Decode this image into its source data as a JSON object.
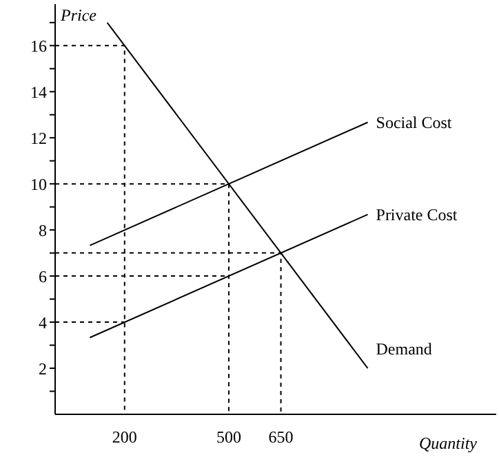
{
  "chart_data": {
    "type": "line",
    "xlabel": "Quantity",
    "ylabel": "Price",
    "xlim": [
      0,
      1270
    ],
    "ylim": [
      0,
      17.8
    ],
    "xticks": [
      200,
      500,
      650
    ],
    "yticks": [
      {
        "value": 1,
        "label": null
      },
      2,
      {
        "value": 3,
        "label": null
      },
      4,
      {
        "value": 5,
        "label": null
      },
      6,
      {
        "value": 7,
        "label": null
      },
      8,
      {
        "value": 9,
        "label": null
      },
      10,
      {
        "value": 11,
        "label": null
      },
      12,
      {
        "value": 13,
        "label": null
      },
      14,
      {
        "value": 15,
        "label": null
      },
      16,
      {
        "value": 17,
        "label": null
      }
    ],
    "grid": false,
    "legend": false,
    "marker": "none",
    "line_style": "solid",
    "series": [
      {
        "name": "Demand",
        "color": "#000000",
        "x": [
          150,
          900
        ],
        "values": [
          17,
          2
        ]
      },
      {
        "name": "Social Cost",
        "color": "#000000",
        "x": [
          100,
          900
        ],
        "values": [
          7.33,
          12.67
        ]
      },
      {
        "name": "Private Cost",
        "color": "#000000",
        "x": [
          100,
          900
        ],
        "values": [
          3.33,
          8.67
        ]
      },
      {
        "color": "#000000",
        "line_style": "dashed",
        "x": [
          0,
          200,
          200
        ],
        "values": [
          16,
          16,
          0
        ]
      },
      {
        "color": "#000000",
        "line_style": "dashed",
        "x": [
          0,
          500,
          500
        ],
        "values": [
          10,
          10,
          0
        ]
      },
      {
        "color": "#000000",
        "line_style": "dashed",
        "x": [
          0,
          650,
          650
        ],
        "values": [
          7,
          7,
          0
        ]
      },
      {
        "color": "#000000",
        "line_style": "dashed",
        "x": [
          0,
          500
        ],
        "values": [
          6,
          6
        ]
      },
      {
        "color": "#000000",
        "line_style": "dashed",
        "x": [
          0,
          200
        ],
        "values": [
          4,
          4
        ]
      }
    ]
  }
}
